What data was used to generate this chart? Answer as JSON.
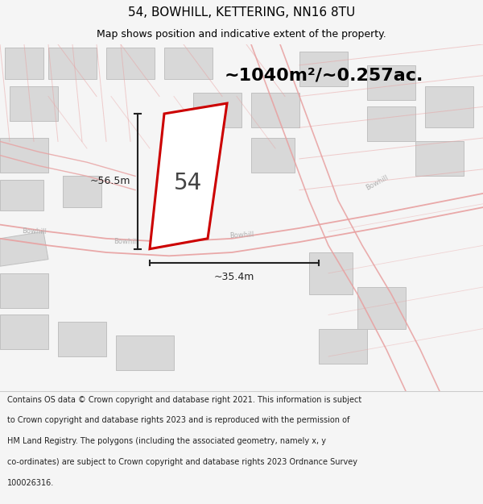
{
  "title": "54, BOWHILL, KETTERING, NN16 8TU",
  "subtitle": "Map shows position and indicative extent of the property.",
  "area_text": "~1040m²/~0.257ac.",
  "label_54": "54",
  "dim_height": "~56.5m",
  "dim_width": "~35.4m",
  "footer_lines": [
    "Contains OS data © Crown copyright and database right 2021. This information is subject",
    "to Crown copyright and database rights 2023 and is reproduced with the permission of",
    "HM Land Registry. The polygons (including the associated geometry, namely x, y",
    "co-ordinates) are subject to Crown copyright and database rights 2023 Ordnance Survey",
    "100026316."
  ],
  "bg_color": "#f5f5f5",
  "map_bg": "#ffffff",
  "road_color": "#e8a0a0",
  "building_fill": "#d8d8d8",
  "building_edge": "#c0c0c0",
  "plot_color": "#cc0000",
  "plot_fill": "#ffffff",
  "dim_color": "#222222",
  "title_color": "#000000",
  "area_color": "#000000",
  "road_label_color": "#b0b0b0",
  "footer_color": "#222222",
  "title_fontsize": 11,
  "subtitle_fontsize": 9,
  "area_fontsize": 16,
  "label_fontsize": 20,
  "dim_fontsize": 9,
  "road_label_fontsize": 6,
  "footer_fontsize": 7
}
